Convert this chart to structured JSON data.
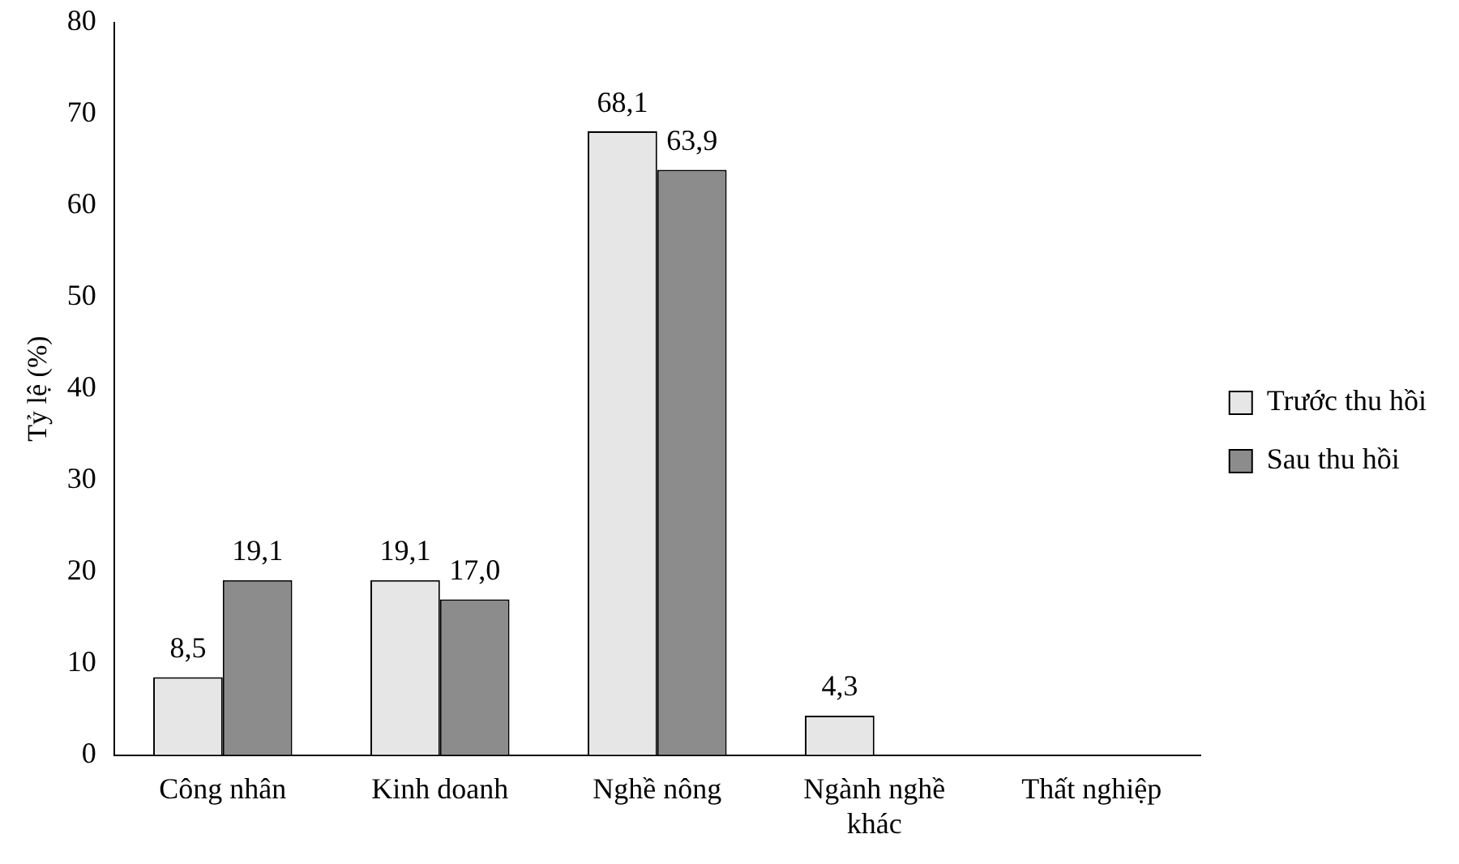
{
  "chart_data": {
    "type": "bar",
    "ylabel": "Tỷ lệ (%)",
    "categories": [
      "Công nhân",
      "Kinh doanh",
      "Nghề nông",
      "Ngành nghề khác",
      "Thất nghiệp"
    ],
    "series": [
      {
        "name": "Trước thu hồi",
        "color": "#e6e6e6",
        "values": [
          8.5,
          19.1,
          68.1,
          4.3,
          null
        ],
        "value_labels": [
          "8,5",
          "19,1",
          "68,1",
          "4,3",
          null
        ]
      },
      {
        "name": "Sau thu hồi",
        "color": "#8c8c8c",
        "values": [
          19.1,
          17.0,
          63.9,
          null,
          null
        ],
        "value_labels": [
          "19,1",
          "17,0",
          "63,9",
          null,
          null
        ]
      }
    ],
    "ylim": [
      0,
      80
    ],
    "yticks": [
      0,
      10,
      20,
      30,
      40,
      50,
      60,
      70,
      80
    ],
    "grid": false,
    "legend": "right"
  }
}
